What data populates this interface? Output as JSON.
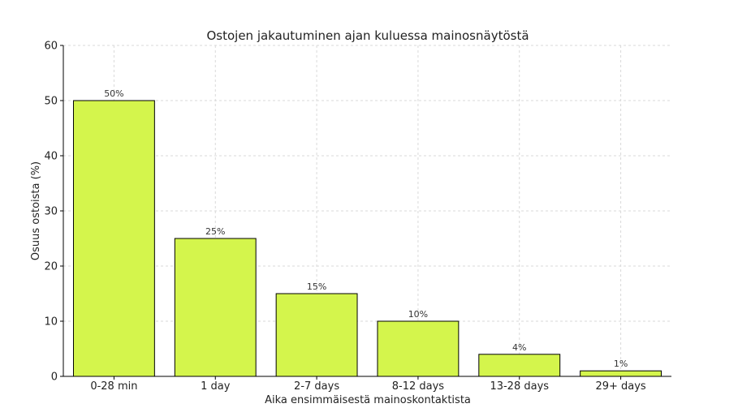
{
  "chart_data": {
    "type": "bar",
    "title": "Ostojen jakautuminen ajan kuluessa mainosnäytöstä",
    "xlabel": "Aika ensimmäisestä mainoskontaktista",
    "ylabel": "Osuus ostoista (%)",
    "categories": [
      "0-28 min",
      "1 day",
      "2-7 days",
      "8-12 days",
      "13-28 days",
      "29+ days"
    ],
    "values": [
      50,
      25,
      15,
      10,
      4,
      1
    ],
    "data_labels": [
      "50%",
      "25%",
      "15%",
      "10%",
      "4%",
      "1%"
    ],
    "ylim": [
      0,
      60
    ],
    "yticks": [
      0,
      10,
      20,
      30,
      40,
      50,
      60
    ],
    "grid": true,
    "bar_color": "#d4f54c"
  }
}
